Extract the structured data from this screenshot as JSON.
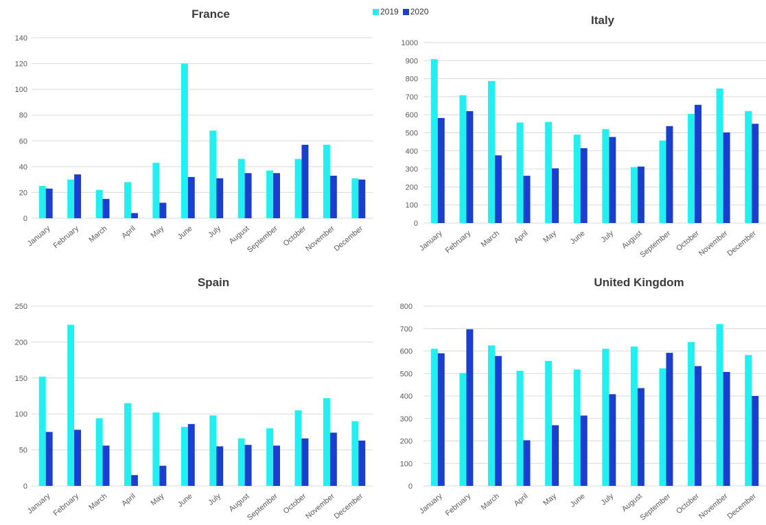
{
  "legend": {
    "label_2019": "2019",
    "label_2020": "2020"
  },
  "colors": {
    "s2019": "#22f0f0",
    "s2020": "#1a3fcf",
    "grid": "#d9d9d9",
    "axis_text": "#595959",
    "title": "#3b3b3b"
  },
  "chart_data": [
    {
      "type": "bar",
      "title": "France",
      "categories": [
        "January",
        "February",
        "March",
        "April",
        "May",
        "June",
        "July",
        "August",
        "September",
        "October",
        "November",
        "December"
      ],
      "series": [
        {
          "name": "2019",
          "values": [
            25,
            30,
            22,
            28,
            43,
            120,
            68,
            46,
            37,
            46,
            57,
            31
          ]
        },
        {
          "name": "2020",
          "values": [
            23,
            34,
            15,
            4,
            12,
            32,
            31,
            35,
            35,
            57,
            33,
            30
          ]
        }
      ],
      "ylim": [
        0,
        140
      ],
      "yticks": [
        0,
        20,
        40,
        60,
        80,
        100,
        120,
        140
      ],
      "grid": true
    },
    {
      "type": "bar",
      "title": "Italy",
      "categories": [
        "January",
        "February",
        "March",
        "April",
        "May",
        "June",
        "July",
        "August",
        "September",
        "October",
        "November",
        "December"
      ],
      "series": [
        {
          "name": "2019",
          "values": [
            908,
            708,
            787,
            557,
            560,
            490,
            520,
            310,
            457,
            605,
            745,
            620
          ]
        },
        {
          "name": "2020",
          "values": [
            582,
            620,
            375,
            262,
            303,
            415,
            477,
            313,
            537,
            655,
            502,
            550
          ]
        }
      ],
      "ylim": [
        0,
        1000
      ],
      "yticks": [
        0,
        100,
        200,
        300,
        400,
        500,
        600,
        700,
        800,
        900,
        1000
      ],
      "grid": true
    },
    {
      "type": "bar",
      "title": "Spain",
      "categories": [
        "January",
        "February",
        "March",
        "April",
        "May",
        "June",
        "July",
        "August",
        "September",
        "October",
        "November",
        "December"
      ],
      "series": [
        {
          "name": "2019",
          "values": [
            152,
            224,
            94,
            115,
            102,
            82,
            98,
            66,
            80,
            105,
            122,
            90
          ]
        },
        {
          "name": "2020",
          "values": [
            75,
            78,
            56,
            15,
            28,
            86,
            55,
            57,
            56,
            66,
            74,
            63
          ]
        }
      ],
      "ylim": [
        0,
        250
      ],
      "yticks": [
        0,
        50,
        100,
        150,
        200,
        250
      ],
      "grid": true
    },
    {
      "type": "bar",
      "title": "United Kingdom",
      "categories": [
        "January",
        "February",
        "March",
        "April",
        "May",
        "June",
        "July",
        "August",
        "September",
        "October",
        "November",
        "December"
      ],
      "series": [
        {
          "name": "2019",
          "values": [
            610,
            502,
            625,
            512,
            556,
            518,
            610,
            620,
            523,
            640,
            720,
            582
          ]
        },
        {
          "name": "2020",
          "values": [
            590,
            697,
            578,
            203,
            270,
            313,
            408,
            435,
            592,
            533,
            507,
            400
          ]
        }
      ],
      "ylim": [
        0,
        800
      ],
      "yticks": [
        0,
        100,
        200,
        300,
        400,
        500,
        600,
        700,
        800
      ],
      "grid": true
    }
  ]
}
